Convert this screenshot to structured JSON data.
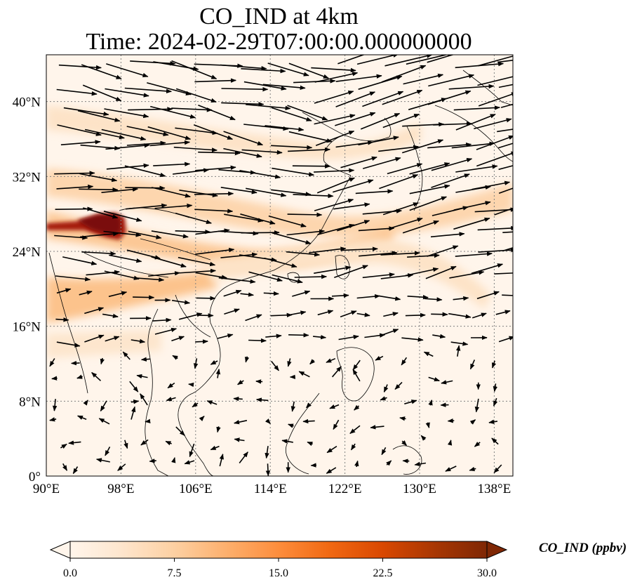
{
  "title": {
    "line1": "CO_IND at 4km",
    "line2": "Time: 2024-02-29T07:00:00.000000000"
  },
  "axes": {
    "lon_range": [
      90,
      140
    ],
    "lat_range": [
      0,
      45
    ],
    "x_ticks": [
      "90°E",
      "98°E",
      "106°E",
      "114°E",
      "122°E",
      "130°E",
      "138°E"
    ],
    "y_ticks": [
      "0°",
      "8°N",
      "16°N",
      "24°N",
      "32°N",
      "40°N"
    ],
    "x_tick_values": [
      90,
      98,
      106,
      114,
      122,
      130,
      138
    ],
    "y_tick_values": [
      0,
      8,
      16,
      24,
      32,
      40
    ],
    "gridlines": true
  },
  "colorbar": {
    "label": "CO_IND (ppbv)",
    "ticks": [
      "0.0",
      "7.5",
      "15.0",
      "22.5",
      "30.0"
    ],
    "tick_values": [
      0,
      7.5,
      15,
      22.5,
      30
    ],
    "range": [
      0,
      30
    ],
    "extend": "both",
    "colors": [
      "#fff5eb",
      "#fee6ce",
      "#fdd0a2",
      "#fdae6b",
      "#fd8d3c",
      "#f16913",
      "#d94801",
      "#a63603",
      "#7f2704"
    ]
  },
  "colors": {
    "background": "#fff5eb",
    "hotspot": "#8b0d0d",
    "plume": "#fbd3a6",
    "coastline": "#000000",
    "grid": "#808080"
  }
}
